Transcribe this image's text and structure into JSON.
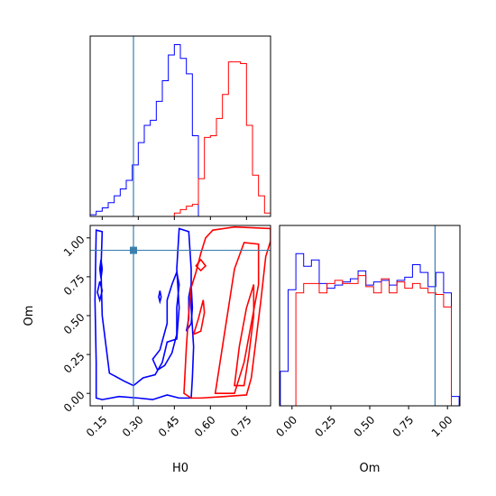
{
  "chart_data": {
    "type": "corner",
    "params": [
      "H0",
      "Om"
    ],
    "truth": {
      "H0": 0.28,
      "Om": 0.92
    },
    "colors": {
      "truth": "#3b7fb0",
      "series_a": "#0000ff",
      "series_b": "#ff0000"
    },
    "panels": {
      "h0_hist": {
        "xlim": [
          0.1,
          0.85
        ],
        "ylim": [
          0,
          1.05
        ],
        "bins": [
          0.1,
          0.125,
          0.15,
          0.175,
          0.2,
          0.225,
          0.25,
          0.275,
          0.3,
          0.325,
          0.35,
          0.375,
          0.4,
          0.425,
          0.45,
          0.475,
          0.5,
          0.525,
          0.55,
          0.575,
          0.6,
          0.625,
          0.65,
          0.675,
          0.7,
          0.725,
          0.75,
          0.775,
          0.8,
          0.825,
          0.85
        ],
        "series": [
          {
            "color_key": "series_a",
            "values": [
              0.01,
              0.03,
              0.05,
              0.08,
              0.12,
              0.16,
              0.21,
              0.3,
              0.43,
              0.53,
              0.56,
              0.67,
              0.79,
              0.94,
              1.0,
              0.92,
              0.83,
              0.47,
              0.0,
              0.0,
              0.0,
              0.0,
              0.0,
              0.0,
              0.0,
              0.0,
              0.0,
              0.0,
              0.0,
              0.0
            ]
          },
          {
            "color_key": "series_b",
            "values": [
              0.0,
              0.0,
              0.0,
              0.0,
              0.0,
              0.0,
              0.0,
              0.0,
              0.0,
              0.0,
              0.0,
              0.0,
              0.0,
              0.0,
              0.02,
              0.04,
              0.06,
              0.07,
              0.22,
              0.46,
              0.47,
              0.57,
              0.71,
              0.9,
              0.9,
              0.89,
              0.53,
              0.24,
              0.12,
              0.02
            ]
          }
        ]
      },
      "om_hist": {
        "xlim": [
          -0.08,
          1.08
        ],
        "ylim": [
          0,
          1.15
        ],
        "bins": [
          -0.075,
          -0.025,
          0.025,
          0.075,
          0.125,
          0.175,
          0.225,
          0.275,
          0.325,
          0.375,
          0.425,
          0.475,
          0.525,
          0.575,
          0.625,
          0.675,
          0.725,
          0.775,
          0.825,
          0.875,
          0.925,
          0.975,
          1.025,
          1.075
        ],
        "series": [
          {
            "color_key": "series_a",
            "values": [
              0.22,
              0.74,
              0.97,
              0.89,
              0.93,
              0.78,
              0.75,
              0.77,
              0.79,
              0.81,
              0.86,
              0.77,
              0.79,
              0.8,
              0.77,
              0.8,
              0.82,
              0.9,
              0.85,
              0.76,
              0.85,
              0.72,
              0.06
            ]
          },
          {
            "color_key": "series_b",
            "values": [
              0.0,
              0.0,
              0.72,
              0.78,
              0.78,
              0.72,
              0.78,
              0.8,
              0.78,
              0.78,
              0.83,
              0.76,
              0.72,
              0.81,
              0.72,
              0.79,
              0.75,
              0.78,
              0.75,
              0.72,
              0.71,
              0.63,
              0.0
            ]
          }
        ]
      },
      "joint": {
        "xlim": [
          0.1,
          0.85
        ],
        "ylim": [
          -0.08,
          1.08
        ],
        "series": [
          {
            "color_key": "series_a",
            "contours": [
              [
                [
                  0.125,
                  -0.03
                ],
                [
                  0.15,
                  -0.04
                ],
                [
                  0.22,
                  -0.02
                ],
                [
                  0.3,
                  -0.03
                ],
                [
                  0.36,
                  -0.04
                ],
                [
                  0.42,
                  -0.01
                ],
                [
                  0.47,
                  -0.03
                ],
                [
                  0.52,
                  -0.03
                ],
                [
                  0.525,
                  0.1
                ],
                [
                  0.53,
                  0.3
                ],
                [
                  0.52,
                  0.55
                ],
                [
                  0.52,
                  0.8
                ],
                [
                  0.51,
                  1.04
                ],
                [
                  0.47,
                  1.06
                ],
                [
                  0.46,
                  0.8
                ],
                [
                  0.47,
                  0.55
                ],
                [
                  0.46,
                  0.35
                ],
                [
                  0.42,
                  0.33
                ],
                [
                  0.4,
                  0.2
                ],
                [
                  0.37,
                  0.12
                ],
                [
                  0.32,
                  0.1
                ],
                [
                  0.28,
                  0.05
                ],
                [
                  0.24,
                  0.08
                ],
                [
                  0.18,
                  0.13
                ],
                [
                  0.15,
                  0.5
                ],
                [
                  0.145,
                  0.8
                ],
                [
                  0.15,
                  1.04
                ],
                [
                  0.125,
                  1.05
                ],
                [
                  0.12,
                  0.6
                ],
                [
                  0.125,
                  0.2
                ],
                [
                  0.125,
                  -0.03
                ]
              ],
              [
                [
                  0.36,
                  0.22
                ],
                [
                  0.39,
                  0.28
                ],
                [
                  0.42,
                  0.45
                ],
                [
                  0.42,
                  0.6
                ],
                [
                  0.44,
                  0.7
                ],
                [
                  0.46,
                  0.78
                ],
                [
                  0.47,
                  0.7
                ],
                [
                  0.46,
                  0.55
                ],
                [
                  0.46,
                  0.38
                ],
                [
                  0.44,
                  0.26
                ],
                [
                  0.41,
                  0.18
                ],
                [
                  0.38,
                  0.15
                ],
                [
                  0.36,
                  0.22
                ]
              ],
              [
                [
                  0.5,
                  0.4
                ],
                [
                  0.51,
                  0.48
                ],
                [
                  0.51,
                  0.62
                ],
                [
                  0.52,
                  0.7
                ],
                [
                  0.525,
                  0.55
                ],
                [
                  0.52,
                  0.45
                ],
                [
                  0.5,
                  0.4
                ]
              ],
              [
                [
                  0.13,
                  0.65
                ],
                [
                  0.14,
                  0.72
                ],
                [
                  0.15,
                  0.66
                ],
                [
                  0.14,
                  0.6
                ],
                [
                  0.13,
                  0.65
                ]
              ],
              [
                [
                  0.14,
                  0.8
                ],
                [
                  0.145,
                  0.86
                ],
                [
                  0.15,
                  0.8
                ],
                [
                  0.145,
                  0.74
                ],
                [
                  0.14,
                  0.8
                ]
              ],
              [
                [
                  0.385,
                  0.62
                ],
                [
                  0.39,
                  0.66
                ],
                [
                  0.395,
                  0.62
                ],
                [
                  0.39,
                  0.59
                ],
                [
                  0.385,
                  0.62
                ]
              ]
            ]
          },
          {
            "color_key": "series_b",
            "contours": [
              [
                [
                  0.49,
                  0.0
                ],
                [
                  0.5,
                  0.3
                ],
                [
                  0.51,
                  0.52
                ],
                [
                  0.52,
                  0.68
                ],
                [
                  0.54,
                  0.78
                ],
                [
                  0.56,
                  0.9
                ],
                [
                  0.58,
                  1.0
                ],
                [
                  0.61,
                  1.05
                ],
                [
                  0.7,
                  1.07
                ],
                [
                  0.85,
                  1.06
                ],
                [
                  0.85,
                  0.98
                ],
                [
                  0.83,
                  0.88
                ],
                [
                  0.81,
                  0.6
                ],
                [
                  0.79,
                  0.35
                ],
                [
                  0.77,
                  0.1
                ],
                [
                  0.75,
                  -0.01
                ],
                [
                  0.66,
                  -0.02
                ],
                [
                  0.56,
                  -0.03
                ],
                [
                  0.52,
                  -0.03
                ],
                [
                  0.49,
                  0.0
                ]
              ],
              [
                [
                  0.62,
                  0.0
                ],
                [
                  0.64,
                  0.2
                ],
                [
                  0.66,
                  0.4
                ],
                [
                  0.68,
                  0.6
                ],
                [
                  0.7,
                  0.8
                ],
                [
                  0.74,
                  0.97
                ],
                [
                  0.8,
                  0.96
                ],
                [
                  0.8,
                  0.7
                ],
                [
                  0.77,
                  0.45
                ],
                [
                  0.74,
                  0.2
                ],
                [
                  0.7,
                  0.0
                ],
                [
                  0.62,
                  0.0
                ]
              ],
              [
                [
                  0.7,
                  0.05
                ],
                [
                  0.72,
                  0.3
                ],
                [
                  0.75,
                  0.55
                ],
                [
                  0.78,
                  0.7
                ],
                [
                  0.78,
                  0.5
                ],
                [
                  0.76,
                  0.25
                ],
                [
                  0.74,
                  0.05
                ],
                [
                  0.7,
                  0.05
                ]
              ],
              [
                [
                  0.53,
                  0.38
                ],
                [
                  0.55,
                  0.48
                ],
                [
                  0.57,
                  0.6
                ],
                [
                  0.575,
                  0.52
                ],
                [
                  0.56,
                  0.4
                ],
                [
                  0.53,
                  0.38
                ]
              ],
              [
                [
                  0.54,
                  0.82
                ],
                [
                  0.56,
                  0.86
                ],
                [
                  0.58,
                  0.82
                ],
                [
                  0.56,
                  0.79
                ],
                [
                  0.54,
                  0.82
                ]
              ]
            ]
          }
        ]
      }
    },
    "axes": {
      "h0_ticks": [
        0.15,
        0.3,
        0.45,
        0.6,
        0.75
      ],
      "h0_tick_labels": [
        "0.15",
        "0.30",
        "0.45",
        "0.60",
        "0.75"
      ],
      "om_ticks": [
        0.0,
        0.25,
        0.5,
        0.75,
        1.0
      ],
      "om_tick_labels": [
        "0.00",
        "0.25",
        "0.50",
        "0.75",
        "1.00"
      ],
      "xlabel_left": "H0",
      "xlabel_right": "Om",
      "ylabel_joint": "Om"
    }
  }
}
